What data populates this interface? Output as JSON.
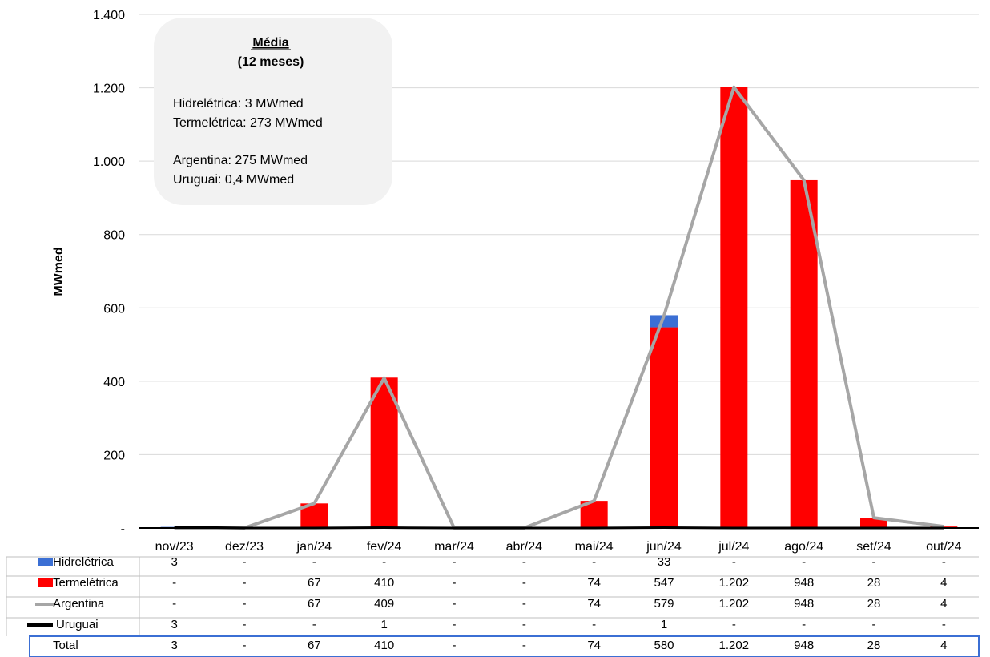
{
  "chart_data": {
    "type": "bar",
    "ylabel": "MWmed",
    "ylim": [
      0,
      1400
    ],
    "yticks": [
      "-",
      "200",
      "400",
      "600",
      "800",
      "1.000",
      "1.200",
      "1.400"
    ],
    "categories": [
      "nov/23",
      "dez/23",
      "jan/24",
      "fev/24",
      "mar/24",
      "abr/24",
      "mai/24",
      "jun/24",
      "jul/24",
      "ago/24",
      "set/24",
      "out/24"
    ],
    "series": [
      {
        "name": "Hidrelétrica",
        "kind": "bar-stacked",
        "color": "#3B6FD4",
        "values": [
          3,
          0,
          0,
          0,
          0,
          0,
          0,
          33,
          0,
          0,
          0,
          0
        ]
      },
      {
        "name": "Termelétrica",
        "kind": "bar-stacked",
        "color": "#FF0000",
        "values": [
          0,
          0,
          67,
          410,
          0,
          0,
          74,
          547,
          1202,
          948,
          28,
          4
        ]
      },
      {
        "name": "Argentina",
        "kind": "line",
        "color": "#A6A6A6",
        "values": [
          0,
          0,
          67,
          409,
          0,
          0,
          74,
          579,
          1202,
          948,
          28,
          4
        ]
      },
      {
        "name": "Uruguai",
        "kind": "line",
        "color": "#000000",
        "values": [
          3,
          0,
          0,
          1,
          0,
          0,
          0,
          1,
          0,
          0,
          0,
          0
        ]
      }
    ],
    "table": {
      "rows": [
        {
          "label": "Hidrelétrica",
          "cells": [
            "3",
            "-",
            "-",
            "-",
            "-",
            "-",
            "-",
            "33",
            "-",
            "-",
            "-",
            "-"
          ]
        },
        {
          "label": "Termelétrica",
          "cells": [
            "-",
            "-",
            "67",
            "410",
            "-",
            "-",
            "74",
            "547",
            "1.202",
            "948",
            "28",
            "4"
          ]
        },
        {
          "label": "Argentina",
          "cells": [
            "-",
            "-",
            "67",
            "409",
            "-",
            "-",
            "74",
            "579",
            "1.202",
            "948",
            "28",
            "4"
          ]
        },
        {
          "label": "Uruguai",
          "cells": [
            "3",
            "-",
            "-",
            "1",
            "-",
            "-",
            "-",
            "1",
            "-",
            "-",
            "-",
            "-"
          ]
        },
        {
          "label": "Total",
          "cells": [
            "3",
            "-",
            "67",
            "410",
            "-",
            "-",
            "74",
            "580",
            "1.202",
            "948",
            "28",
            "4"
          ]
        }
      ]
    },
    "annotation": {
      "title": "Média",
      "subtitle": "(12 meses)",
      "lines": [
        "Hidrelétrica: 3 MWmed",
        "Termelétrica: 273 MWmed",
        "",
        "Argentina: 275 MWmed",
        "Uruguai:  0,4 MWmed"
      ]
    },
    "grid": true
  }
}
